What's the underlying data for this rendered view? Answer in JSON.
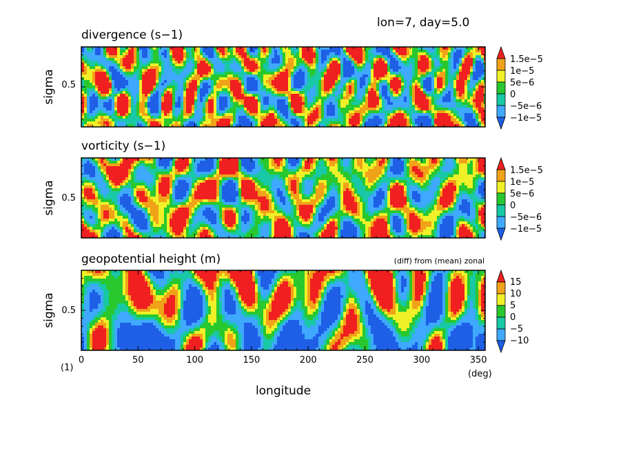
{
  "header": {
    "text": "lon=7, day=5.0"
  },
  "xaxis": {
    "label": "longitude",
    "unit": "(deg)",
    "ticks": [
      "0",
      "50",
      "100",
      "150",
      "200",
      "250",
      "300",
      "350"
    ],
    "tick_values": [
      0,
      50,
      100,
      150,
      200,
      250,
      300,
      350
    ],
    "range": [
      0,
      356
    ]
  },
  "corner_label": "(1)",
  "palette": [
    "#1e5fe6",
    "#3fa8ff",
    "#18c8a6",
    "#28c82e",
    "#f0f028",
    "#f0a218",
    "#f02020"
  ],
  "chart_data": [
    {
      "type": "heatmap",
      "title": "divergence (s−1)",
      "ylabel": "sigma",
      "yticks": [
        "0.5"
      ],
      "colorbar_labels": [
        "1.5e−5",
        "1e−5",
        "5e−6",
        "0",
        "−5e−6",
        "−1e−5"
      ],
      "levels": [
        -1.5e-05,
        -1e-05,
        -5e-06,
        0,
        5e-06,
        1e-05,
        1.5e-05
      ],
      "seed": 11,
      "xscale": 12,
      "yscale": 22
    },
    {
      "type": "heatmap",
      "title": "vorticity (s−1)",
      "ylabel": "sigma",
      "yticks": [
        "0.5"
      ],
      "colorbar_labels": [
        "1.5e−5",
        "1e−5",
        "5e−6",
        "0",
        "−5e−6",
        "−1e−5"
      ],
      "levels": [
        -1.5e-05,
        -1e-05,
        -5e-06,
        0,
        5e-06,
        1e-05,
        1.5e-05
      ],
      "seed": 29,
      "xscale": 16,
      "yscale": 30
    },
    {
      "type": "heatmap",
      "title": "geopotential height (m)",
      "note": "(diff) from (mean) zonal",
      "ylabel": "sigma",
      "yticks": [
        "0.5"
      ],
      "colorbar_labels": [
        "15",
        "10",
        "5",
        "0",
        "−5",
        "−10"
      ],
      "levels": [
        -15,
        -10,
        -5,
        0,
        5,
        10,
        15
      ],
      "seed": 47,
      "xscale": 22,
      "yscale": 55
    }
  ]
}
